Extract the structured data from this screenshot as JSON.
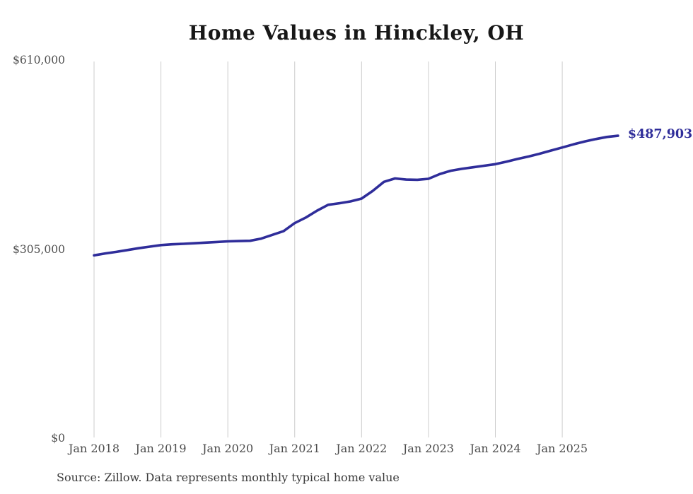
{
  "title": "Home Values in Hinckley, OH",
  "source_note": "Source: Zillow. Data represents monthly typical home value",
  "colors": {
    "line": "#2f2d9a",
    "latest_label": "#2f2d9a",
    "gridline": "#cccccc",
    "title_text": "#171717",
    "axis_text": "#4a4a4a",
    "source_text": "#3a3a3a",
    "background": "#ffffff"
  },
  "chart_data": {
    "type": "line",
    "title": "Home Values in Hinckley, OH",
    "xlabel": "",
    "ylabel": "",
    "ylim": [
      0,
      610000
    ],
    "grid": "vertical-only",
    "legend_position": "none",
    "latest_value_label": "$487,903",
    "x_ticks": [
      {
        "month": "2018-01",
        "label": "Jan 2018"
      },
      {
        "month": "2019-01",
        "label": "Jan 2019"
      },
      {
        "month": "2020-01",
        "label": "Jan 2020"
      },
      {
        "month": "2021-01",
        "label": "Jan 2021"
      },
      {
        "month": "2022-01",
        "label": "Jan 2022"
      },
      {
        "month": "2023-01",
        "label": "Jan 2023"
      },
      {
        "month": "2024-01",
        "label": "Jan 2024"
      },
      {
        "month": "2025-01",
        "label": "Jan 2025"
      }
    ],
    "y_ticks": [
      {
        "value": 0,
        "label": "$0"
      },
      {
        "value": 305000,
        "label": "$305,000"
      },
      {
        "value": 610000,
        "label": "$610,000"
      }
    ],
    "series": [
      {
        "name": "Monthly typical home value",
        "points": [
          [
            "2018-01",
            295000
          ],
          [
            "2018-03",
            298000
          ],
          [
            "2018-05",
            300500
          ],
          [
            "2018-07",
            303500
          ],
          [
            "2018-09",
            306500
          ],
          [
            "2018-11",
            309000
          ],
          [
            "2019-01",
            311500
          ],
          [
            "2019-03",
            312800
          ],
          [
            "2019-05",
            313500
          ],
          [
            "2019-07",
            314500
          ],
          [
            "2019-09",
            315500
          ],
          [
            "2019-11",
            316500
          ],
          [
            "2020-01",
            317500
          ],
          [
            "2020-03",
            318000
          ],
          [
            "2020-05",
            318500
          ],
          [
            "2020-07",
            322000
          ],
          [
            "2020-09",
            328000
          ],
          [
            "2020-11",
            334000
          ],
          [
            "2021-01",
            347000
          ],
          [
            "2021-03",
            356000
          ],
          [
            "2021-05",
            367000
          ],
          [
            "2021-07",
            376500
          ],
          [
            "2021-09",
            379000
          ],
          [
            "2021-11",
            382000
          ],
          [
            "2022-01",
            386500
          ],
          [
            "2022-03",
            399000
          ],
          [
            "2022-05",
            413500
          ],
          [
            "2022-07",
            419000
          ],
          [
            "2022-09",
            417200
          ],
          [
            "2022-11",
            416800
          ],
          [
            "2023-01",
            418500
          ],
          [
            "2023-03",
            426000
          ],
          [
            "2023-05",
            431500
          ],
          [
            "2023-07",
            434500
          ],
          [
            "2023-09",
            437000
          ],
          [
            "2023-11",
            439500
          ],
          [
            "2024-01",
            442000
          ],
          [
            "2024-03",
            446000
          ],
          [
            "2024-05",
            450500
          ],
          [
            "2024-07",
            454500
          ],
          [
            "2024-09",
            459000
          ],
          [
            "2024-11",
            464000
          ],
          [
            "2025-01",
            469000
          ],
          [
            "2025-03",
            474000
          ],
          [
            "2025-05",
            478500
          ],
          [
            "2025-07",
            482500
          ],
          [
            "2025-09",
            486000
          ],
          [
            "2025-11",
            487903
          ]
        ]
      }
    ]
  }
}
